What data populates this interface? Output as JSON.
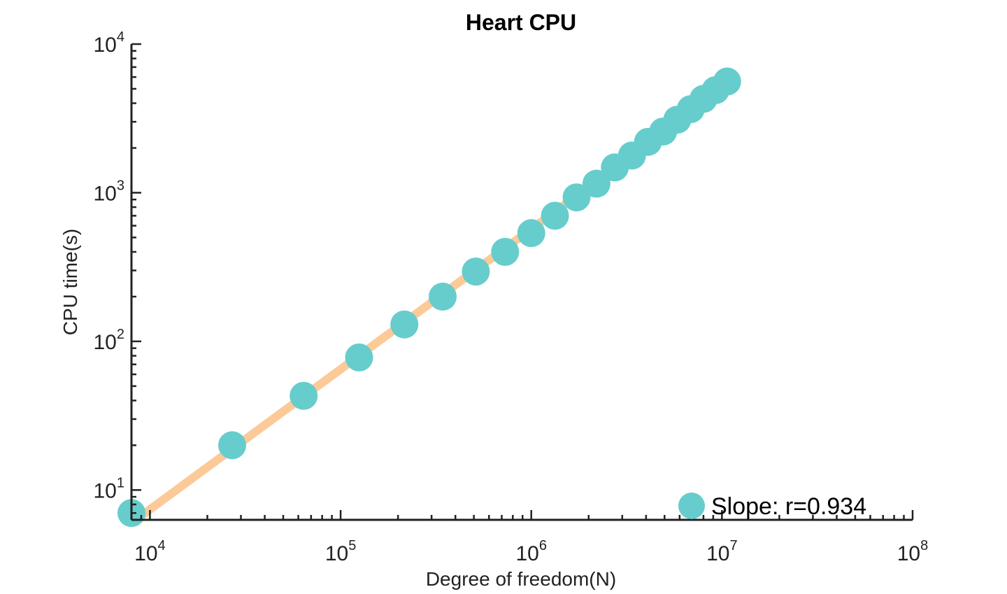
{
  "chart_data": {
    "type": "scatter",
    "title": "Heart CPU",
    "xlabel": "Degree of freedom(N)",
    "ylabel": "CPU time(s)",
    "xscale": "log",
    "yscale": "log",
    "xlim": [
      8000,
      100000000
    ],
    "ylim": [
      6.3,
      10000
    ],
    "xticks": [
      {
        "base": "10",
        "exp": "4",
        "value": 10000
      },
      {
        "base": "10",
        "exp": "5",
        "value": 100000
      },
      {
        "base": "10",
        "exp": "6",
        "value": 1000000
      },
      {
        "base": "10",
        "exp": "7",
        "value": 10000000
      },
      {
        "base": "10",
        "exp": "8",
        "value": 100000000
      }
    ],
    "yticks": [
      {
        "base": "10",
        "exp": "1",
        "value": 10
      },
      {
        "base": "10",
        "exp": "2",
        "value": 100
      },
      {
        "base": "10",
        "exp": "3",
        "value": 1000
      },
      {
        "base": "10",
        "exp": "4",
        "value": 10000
      }
    ],
    "series": [
      {
        "name": "Slope:  r=0.934",
        "marker_color": "#66cdcc",
        "x": [
          8000,
          27000,
          64000,
          125000,
          216000,
          343000,
          512000,
          729000,
          1000000,
          1331000,
          1728000,
          2197000,
          2744000,
          3375000,
          4096000,
          4913000,
          5832000,
          6859000,
          8000000,
          9261000,
          10648000
        ],
        "y": [
          7,
          20,
          43,
          78,
          130,
          200,
          295,
          400,
          535,
          700,
          930,
          1150,
          1480,
          1780,
          2200,
          2580,
          3100,
          3650,
          4280,
          4900,
          5600
        ]
      }
    ],
    "fit_line": {
      "color": "#fcca98",
      "x": [
        8000,
        10648000
      ],
      "y": [
        6.0,
        5300
      ]
    },
    "legend": {
      "label": "Slope:  r=0.934",
      "position": "bottom-right"
    },
    "grid": false
  }
}
